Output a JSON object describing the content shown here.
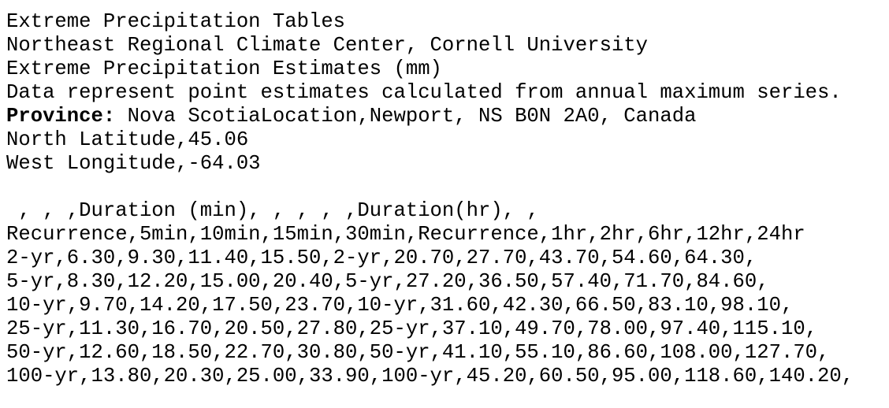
{
  "header": {
    "title": "Extreme Precipitation Tables",
    "source": "Northeast Regional Climate Center, Cornell University",
    "subtitle": "Extreme Precipitation Estimates (mm)",
    "note": "Data represent point estimates calculated from annual maximum series.",
    "province_label": "Province:",
    "province_value": " Nova ScotiaLocation,Newport, NS B0N 2A0, Canada",
    "latitude": "North Latitude,45.06",
    "longitude": "West Longitude,-64.03"
  },
  "table": {
    "rows": [
      " , , ,Duration (min), , , , ,Duration(hr), ,",
      "Recurrence,5min,10min,15min,30min,Recurrence,1hr,2hr,6hr,12hr,24hr",
      "2-yr,6.30,9.30,11.40,15.50,2-yr,20.70,27.70,43.70,54.60,64.30,",
      "5-yr,8.30,12.20,15.00,20.40,5-yr,27.20,36.50,57.40,71.70,84.60,",
      "10-yr,9.70,14.20,17.50,23.70,10-yr,31.60,42.30,66.50,83.10,98.10,",
      "25-yr,11.30,16.70,20.50,27.80,25-yr,37.10,49.70,78.00,97.40,115.10,",
      "50-yr,12.60,18.50,22.70,30.80,50-yr,41.10,55.10,86.60,108.00,127.70,",
      "100-yr,13.80,20.30,25.00,33.90,100-yr,45.20,60.50,95.00,118.60,140.20,"
    ]
  }
}
